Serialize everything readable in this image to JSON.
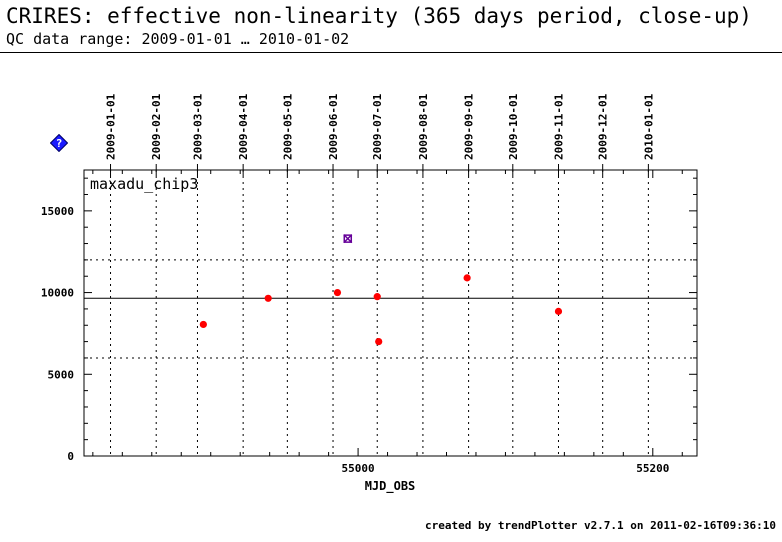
{
  "header": {
    "title": "CRIRES: effective non-linearity (365 days period, close-up)",
    "subtitle": "QC data range: 2009-01-01 … 2010-01-02"
  },
  "help_icon": {
    "name": "help-icon",
    "color": "#1a1aff",
    "glyph": "?"
  },
  "footer": {
    "text": "created by trendPlotter v2.7.1 on 2011-02-16T09:36:10"
  },
  "chart_data": {
    "type": "scatter",
    "panel_label": "maxadu_chip3",
    "xlabel": "MJD_OBS",
    "ylabel": "",
    "xlim": [
      54814,
      55230
    ],
    "ylim": [
      0,
      17500
    ],
    "x_ticks": [
      55000,
      55200
    ],
    "y_ticks": [
      0,
      5000,
      10000,
      15000
    ],
    "top_axis_dates": [
      {
        "label": "2009-01-01",
        "mjd": 54832
      },
      {
        "label": "2009-02-01",
        "mjd": 54863
      },
      {
        "label": "2009-03-01",
        "mjd": 54891
      },
      {
        "label": "2009-04-01",
        "mjd": 54922
      },
      {
        "label": "2009-05-01",
        "mjd": 54952
      },
      {
        "label": "2009-06-01",
        "mjd": 54983
      },
      {
        "label": "2009-07-01",
        "mjd": 55013
      },
      {
        "label": "2009-08-01",
        "mjd": 55044
      },
      {
        "label": "2009-09-01",
        "mjd": 55075
      },
      {
        "label": "2009-10-01",
        "mjd": 55105
      },
      {
        "label": "2009-11-01",
        "mjd": 55136
      },
      {
        "label": "2009-12-01",
        "mjd": 55166
      },
      {
        "label": "2010-01-01",
        "mjd": 55197
      }
    ],
    "reference_line": 9650,
    "threshold_lines": [
      6000,
      12000
    ],
    "series": [
      {
        "color": "#ff0000",
        "points": [
          {
            "x": 54895,
            "y": 8050
          },
          {
            "x": 54939,
            "y": 9650
          },
          {
            "x": 54986,
            "y": 10000
          },
          {
            "x": 55013,
            "y": 9750
          },
          {
            "x": 55014,
            "y": 7000
          },
          {
            "x": 55074,
            "y": 10900
          },
          {
            "x": 55136,
            "y": 8850
          }
        ]
      },
      {
        "color": "#660099",
        "marker": "cross-square",
        "points": [
          {
            "x": 54993,
            "y": 13300
          }
        ]
      }
    ],
    "grid": true
  }
}
